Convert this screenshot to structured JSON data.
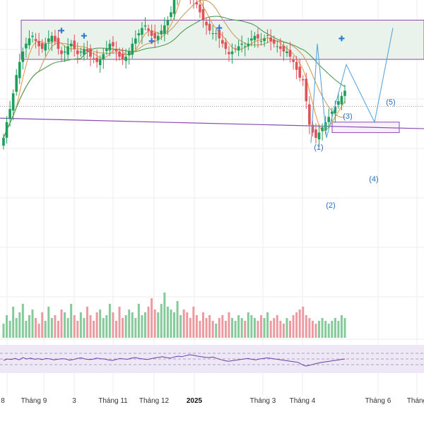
{
  "colors": {
    "up": "#1e9e5a",
    "down": "#e0525a",
    "vol_up": "#86c99a",
    "vol_down": "#ec9aa0",
    "box_border": "#8a4bb5",
    "box_fill": "#e9f3ec",
    "rsi_line": "#6b3fa0",
    "rsi_band": "#ede7f6",
    "ma_fast": "#e59c4a",
    "ma_slow": "#4f9a55",
    "ma_mid": "#c8a060",
    "wave_line": "#5aa6dd",
    "wave_label": "#2a6ebd",
    "marker": "#2f7dd1",
    "grid": "#eeeeee",
    "trend_line": "#8a4bb5"
  },
  "chart_data": {
    "type": "candlestick",
    "title": "",
    "x_ticks": [
      "8",
      "Tháng 9",
      "3",
      "Tháng 11",
      "Tháng 12",
      "2025",
      "Tháng 3",
      "Tháng 4",
      "Tháng 6",
      "Tháng"
    ],
    "wave_labels": [
      "(1)",
      "(2)",
      "(3)",
      "(4)",
      "(5)"
    ],
    "panels": [
      "price",
      "volume",
      "rsi"
    ],
    "grid": true,
    "price_ylim": [
      0,
      100
    ],
    "closes": [
      50,
      56,
      61,
      67,
      74,
      79,
      83,
      86,
      88,
      89,
      87,
      85,
      84,
      86,
      88,
      89,
      87,
      84,
      82,
      83,
      85,
      86,
      84,
      82,
      83,
      84,
      83,
      81,
      80,
      79,
      80,
      82,
      84,
      86,
      85,
      83,
      81,
      80,
      81,
      83,
      86,
      88,
      90,
      92,
      93,
      91,
      89,
      88,
      89,
      91,
      93,
      95,
      98,
      103,
      108,
      112,
      109,
      106,
      104,
      103,
      101,
      98,
      95,
      93,
      91,
      90,
      90,
      88,
      86,
      84,
      82,
      83,
      84,
      85,
      86,
      85,
      86,
      88,
      89,
      88,
      87,
      88,
      89,
      87,
      86,
      85,
      84,
      83,
      83,
      81,
      79,
      76,
      73,
      72,
      64,
      55,
      52,
      50,
      52,
      54,
      56,
      58,
      60,
      62,
      64,
      66,
      68
    ],
    "volume_scale": [
      0,
      100
    ],
    "volumes": [
      25,
      40,
      30,
      55,
      35,
      45,
      60,
      30,
      40,
      50,
      35,
      25,
      45,
      30,
      55,
      35,
      40,
      30,
      50,
      45,
      35,
      60,
      40,
      30,
      45,
      35,
      55,
      40,
      30,
      45,
      50,
      35,
      40,
      60,
      45,
      30,
      55,
      35,
      40,
      50,
      45,
      35,
      60,
      40,
      45,
      55,
      70,
      50,
      45,
      60,
      80,
      55,
      50,
      45,
      65,
      40,
      50,
      45,
      35,
      55,
      40,
      30,
      45,
      35,
      40,
      30,
      25,
      35,
      40,
      30,
      45,
      35,
      30,
      40,
      35,
      30,
      45,
      40,
      35,
      30,
      40,
      35,
      45,
      30,
      35,
      40,
      30,
      25,
      35,
      30,
      40,
      45,
      50,
      55,
      40,
      35,
      30,
      25,
      30,
      35,
      30,
      25,
      30,
      35,
      30,
      40,
      35
    ],
    "rsi_ylim": [
      0,
      100
    ],
    "rsi": [
      45,
      50,
      48,
      52,
      47,
      55,
      50,
      53,
      49,
      51,
      48,
      52,
      50,
      47,
      49,
      51,
      50,
      46,
      48,
      52,
      54,
      50,
      48,
      49,
      53,
      51,
      50,
      47,
      45,
      48,
      52,
      50,
      49,
      53,
      55,
      52,
      50,
      48,
      51,
      54,
      56,
      58,
      55,
      53,
      57,
      60,
      58,
      62,
      65,
      63,
      60,
      58,
      56,
      55,
      57,
      52,
      48,
      44,
      42,
      44,
      46,
      48,
      50,
      52,
      49,
      47,
      50,
      52,
      54,
      52,
      50,
      48,
      46,
      44,
      42,
      40,
      38,
      30,
      25,
      28,
      32,
      35,
      38,
      40,
      42,
      44,
      46,
      48,
      50
    ],
    "resistance_zone": [
      80,
      95
    ],
    "support_zone": [
      52,
      56
    ]
  }
}
